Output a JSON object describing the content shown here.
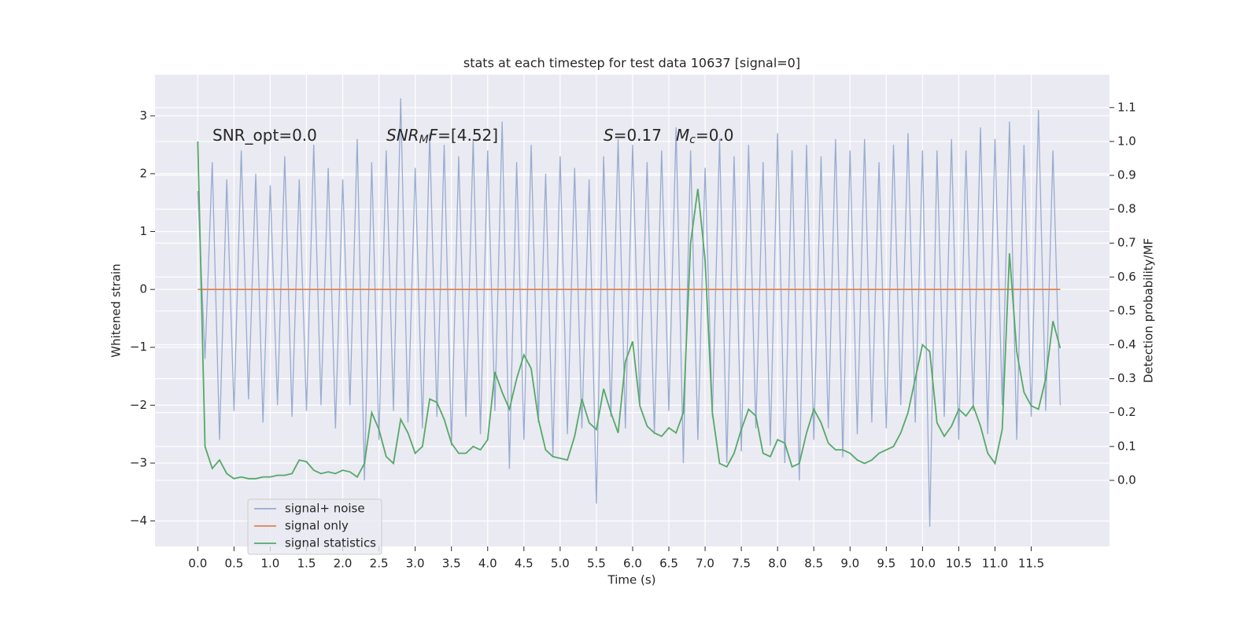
{
  "chart_data": {
    "type": "line",
    "title": "stats at each timestep for test data 10637 [signal=0]",
    "xlabel": "Time (s)",
    "ylabel": "Whitened strain",
    "y2label": "Detection probability/MF",
    "background": "#eaeaf2",
    "grid": true,
    "legend": "lower left",
    "xlim": [
      -0.59,
      12.58
    ],
    "ylim": [
      -4.44,
      3.71
    ],
    "y2lim": [
      -0.195,
      1.197
    ],
    "xticks": [
      {
        "value": 0,
        "label": "0.0"
      },
      0.5,
      {
        "value": 1,
        "label": "1.0"
      },
      1.5,
      {
        "value": 2,
        "label": "2.0"
      },
      2.5,
      {
        "value": 3,
        "label": "3.0"
      },
      3.5,
      {
        "value": 4,
        "label": "4.0"
      },
      4.5,
      {
        "value": 5,
        "label": "5.0"
      },
      5.5,
      {
        "value": 6,
        "label": "6.0"
      },
      6.5,
      {
        "value": 7,
        "label": "7.0"
      },
      7.5,
      {
        "value": 8,
        "label": "8.0"
      },
      8.5,
      {
        "value": 9,
        "label": "9.0"
      },
      9.5,
      {
        "value": 10,
        "label": "10.0"
      },
      10.5,
      {
        "value": 11,
        "label": "11.0"
      },
      11.5
    ],
    "yticks": [
      {
        "value": -4,
        "label": "−4"
      },
      {
        "value": -3,
        "label": "−3"
      },
      {
        "value": -2,
        "label": "−2"
      },
      {
        "value": -1,
        "label": "−1"
      },
      0,
      1,
      2,
      3
    ],
    "y2ticks": [
      {
        "value": 0,
        "label": "0.0"
      },
      0.1,
      0.2,
      0.3,
      0.4,
      0.5,
      0.6,
      0.7,
      0.8,
      0.9,
      {
        "value": 1,
        "label": "1.0"
      },
      1.1
    ],
    "annotations": [
      [
        {
          "text": "SNR_opt=0.0"
        }
      ],
      [
        {
          "text": "SNR",
          "italic": true
        },
        {
          "text": "M",
          "italic": true,
          "sub": true
        },
        {
          "text": "F",
          "italic": true
        },
        {
          "text": "=[4.52]"
        }
      ],
      [
        {
          "text": "S",
          "italic": true
        },
        {
          "text": "=0.17"
        }
      ],
      [
        {
          "text": "M",
          "italic": true
        },
        {
          "text": "c",
          "italic": true,
          "sub": true
        },
        {
          "text": "=0.0"
        }
      ]
    ],
    "x": [
      0.0,
      0.1,
      0.2,
      0.3,
      0.4,
      0.5,
      0.6,
      0.7,
      0.8,
      0.9,
      1.0,
      1.1,
      1.2,
      1.3,
      1.4,
      1.5,
      1.6,
      1.7,
      1.8,
      1.9,
      2.0,
      2.1,
      2.2,
      2.3,
      2.4,
      2.5,
      2.6,
      2.7,
      2.8,
      2.9,
      3.0,
      3.1,
      3.2,
      3.3,
      3.4,
      3.5,
      3.6,
      3.7,
      3.8,
      3.9,
      4.0,
      4.1,
      4.2,
      4.3,
      4.4,
      4.5,
      4.6,
      4.7,
      4.8,
      4.9,
      5.0,
      5.1,
      5.2,
      5.3,
      5.4,
      5.5,
      5.6,
      5.7,
      5.8,
      5.9,
      6.0,
      6.1,
      6.2,
      6.3,
      6.4,
      6.5,
      6.6,
      6.7,
      6.8,
      6.9,
      7.0,
      7.1,
      7.2,
      7.3,
      7.4,
      7.5,
      7.6,
      7.7,
      7.8,
      7.9,
      8.0,
      8.1,
      8.2,
      8.3,
      8.4,
      8.5,
      8.6,
      8.7,
      8.8,
      8.9,
      9.0,
      9.1,
      9.2,
      9.3,
      9.4,
      9.5,
      9.6,
      9.7,
      9.8,
      9.9,
      10.0,
      10.1,
      10.2,
      10.3,
      10.4,
      10.5,
      10.6,
      10.7,
      10.8,
      10.9,
      11.0,
      11.1,
      11.2,
      11.3,
      11.4,
      11.5,
      11.6,
      11.7,
      11.8,
      11.9
    ],
    "series": [
      {
        "name": "signal+ noise",
        "color": "#98abd0",
        "values": [
          1.7,
          -1.2,
          2.2,
          -2.6,
          1.9,
          -2.1,
          2.4,
          -1.9,
          2.0,
          -2.3,
          1.8,
          -2.0,
          2.3,
          -2.2,
          1.9,
          -2.1,
          2.5,
          -2.0,
          2.1,
          -2.4,
          1.9,
          -2.0,
          2.6,
          -3.3,
          2.2,
          -2.6,
          2.4,
          -2.1,
          3.3,
          -2.3,
          2.1,
          -2.4,
          2.7,
          -2.2,
          2.5,
          -2.7,
          2.3,
          -2.2,
          2.6,
          -2.5,
          2.4,
          -2.1,
          2.9,
          -3.1,
          2.2,
          -2.6,
          2.5,
          -2.3,
          2.0,
          -2.9,
          2.3,
          -2.5,
          2.1,
          -2.4,
          1.9,
          -3.7,
          2.3,
          -2.2,
          2.6,
          -2.4,
          2.5,
          -2.0,
          2.2,
          -2.5,
          2.4,
          -2.1,
          2.8,
          -3.0,
          2.4,
          -2.6,
          2.1,
          -2.2,
          2.6,
          -3.0,
          2.3,
          -2.8,
          2.5,
          -2.4,
          2.2,
          -2.7,
          2.7,
          -3.0,
          2.4,
          -3.3,
          2.5,
          -2.6,
          2.3,
          -2.4,
          2.6,
          -2.9,
          2.4,
          -2.5,
          2.6,
          -2.3,
          2.2,
          -2.4,
          2.5,
          -2.0,
          2.7,
          -2.3,
          2.4,
          -4.1,
          2.4,
          -2.2,
          2.6,
          -2.6,
          2.4,
          -2.1,
          2.8,
          -2.5,
          2.6,
          -2.0,
          2.9,
          -2.6,
          2.5,
          -2.2,
          3.1,
          -2.1,
          2.4,
          -2.0
        ]
      },
      {
        "name": "signal only",
        "color": "#dd8452",
        "values": [
          0,
          0,
          0,
          0,
          0,
          0,
          0,
          0,
          0,
          0,
          0,
          0,
          0,
          0,
          0,
          0,
          0,
          0,
          0,
          0,
          0,
          0,
          0,
          0,
          0,
          0,
          0,
          0,
          0,
          0,
          0,
          0,
          0,
          0,
          0,
          0,
          0,
          0,
          0,
          0,
          0,
          0,
          0,
          0,
          0,
          0,
          0,
          0,
          0,
          0,
          0,
          0,
          0,
          0,
          0,
          0,
          0,
          0,
          0,
          0,
          0,
          0,
          0,
          0,
          0,
          0,
          0,
          0,
          0,
          0,
          0,
          0,
          0,
          0,
          0,
          0,
          0,
          0,
          0,
          0,
          0,
          0,
          0,
          0,
          0,
          0,
          0,
          0,
          0,
          0,
          0,
          0,
          0,
          0,
          0,
          0,
          0,
          0,
          0,
          0,
          0,
          0,
          0,
          0,
          0,
          0,
          0,
          0,
          0,
          0,
          0,
          0,
          0,
          0,
          0,
          0,
          0,
          0,
          0,
          0
        ]
      },
      {
        "name": "signal statistics",
        "color": "#55a868",
        "axis": "y2",
        "values": [
          1.0,
          0.1,
          0.035,
          0.06,
          0.02,
          0.005,
          0.01,
          0.005,
          0.005,
          0.01,
          0.01,
          0.015,
          0.015,
          0.02,
          0.06,
          0.055,
          0.03,
          0.02,
          0.025,
          0.02,
          0.03,
          0.025,
          0.01,
          0.05,
          0.2,
          0.15,
          0.07,
          0.05,
          0.18,
          0.14,
          0.08,
          0.1,
          0.24,
          0.23,
          0.18,
          0.11,
          0.08,
          0.08,
          0.1,
          0.09,
          0.12,
          0.32,
          0.26,
          0.21,
          0.3,
          0.37,
          0.33,
          0.18,
          0.09,
          0.07,
          0.065,
          0.06,
          0.13,
          0.24,
          0.17,
          0.15,
          0.27,
          0.2,
          0.14,
          0.35,
          0.41,
          0.22,
          0.16,
          0.14,
          0.13,
          0.155,
          0.14,
          0.2,
          0.7,
          0.86,
          0.65,
          0.2,
          0.05,
          0.04,
          0.08,
          0.15,
          0.21,
          0.19,
          0.08,
          0.07,
          0.12,
          0.11,
          0.04,
          0.05,
          0.14,
          0.21,
          0.17,
          0.11,
          0.09,
          0.09,
          0.08,
          0.06,
          0.05,
          0.06,
          0.08,
          0.09,
          0.1,
          0.14,
          0.2,
          0.3,
          0.4,
          0.38,
          0.17,
          0.13,
          0.16,
          0.21,
          0.19,
          0.22,
          0.16,
          0.08,
          0.05,
          0.15,
          0.67,
          0.38,
          0.26,
          0.22,
          0.21,
          0.3,
          0.47,
          0.39
        ]
      }
    ]
  }
}
